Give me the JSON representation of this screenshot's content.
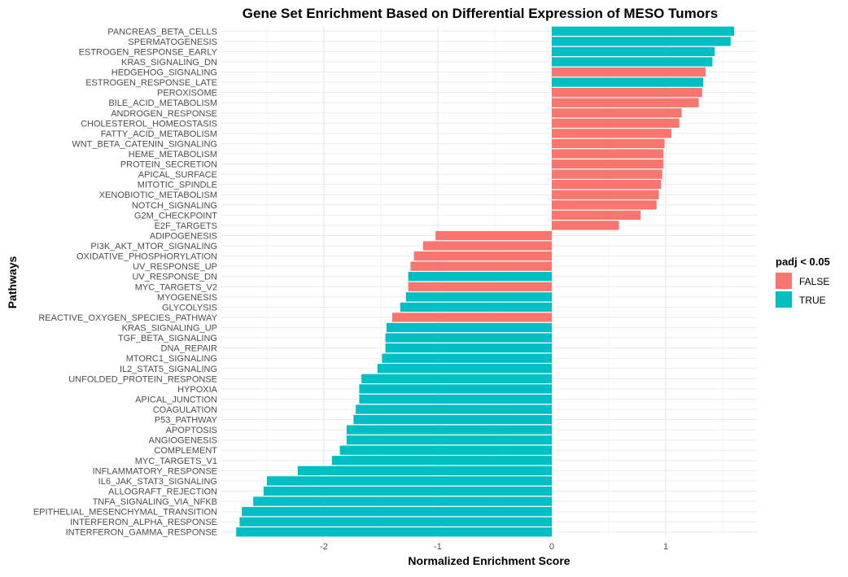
{
  "chart_data": {
    "type": "bar",
    "orientation": "horizontal",
    "title": "Gene Set Enrichment Based on Differential Expression of MESO Tumors",
    "xlabel": "Normalized Enrichment Score",
    "ylabel": "Pathways",
    "xlim": [
      -2.9,
      1.8
    ],
    "xticks": [
      -2,
      -1,
      0,
      1
    ],
    "grid": true,
    "legend": {
      "title": "padj < 0.05",
      "placement": "right",
      "entries": [
        {
          "label": "FALSE",
          "color": "#F8766D"
        },
        {
          "label": "TRUE",
          "color": "#00BFC4"
        }
      ]
    },
    "bars": [
      {
        "pathway": "PANCREAS_BETA_CELLS",
        "nes": 1.6,
        "padj_lt_005": "TRUE"
      },
      {
        "pathway": "SPERMATOGENESIS",
        "nes": 1.57,
        "padj_lt_005": "TRUE"
      },
      {
        "pathway": "ESTROGEN_RESPONSE_EARLY",
        "nes": 1.43,
        "padj_lt_005": "TRUE"
      },
      {
        "pathway": "KRAS_SIGNALING_DN",
        "nes": 1.41,
        "padj_lt_005": "TRUE"
      },
      {
        "pathway": "HEDGEHOG_SIGNALING",
        "nes": 1.35,
        "padj_lt_005": "FALSE"
      },
      {
        "pathway": "ESTROGEN_RESPONSE_LATE",
        "nes": 1.33,
        "padj_lt_005": "TRUE"
      },
      {
        "pathway": "PEROXISOME",
        "nes": 1.32,
        "padj_lt_005": "FALSE"
      },
      {
        "pathway": "BILE_ACID_METABOLISM",
        "nes": 1.29,
        "padj_lt_005": "FALSE"
      },
      {
        "pathway": "ANDROGEN_RESPONSE",
        "nes": 1.14,
        "padj_lt_005": "FALSE"
      },
      {
        "pathway": "CHOLESTEROL_HOMEOSTASIS",
        "nes": 1.12,
        "padj_lt_005": "FALSE"
      },
      {
        "pathway": "FATTY_ACID_METABOLISM",
        "nes": 1.05,
        "padj_lt_005": "FALSE"
      },
      {
        "pathway": "WNT_BETA_CATENIN_SIGNALING",
        "nes": 0.99,
        "padj_lt_005": "FALSE"
      },
      {
        "pathway": "HEME_METABOLISM",
        "nes": 0.98,
        "padj_lt_005": "FALSE"
      },
      {
        "pathway": "PROTEIN_SECRETION",
        "nes": 0.98,
        "padj_lt_005": "FALSE"
      },
      {
        "pathway": "APICAL_SURFACE",
        "nes": 0.97,
        "padj_lt_005": "FALSE"
      },
      {
        "pathway": "MITOTIC_SPINDLE",
        "nes": 0.96,
        "padj_lt_005": "FALSE"
      },
      {
        "pathway": "XENOBIOTIC_METABOLISM",
        "nes": 0.94,
        "padj_lt_005": "FALSE"
      },
      {
        "pathway": "NOTCH_SIGNALING",
        "nes": 0.92,
        "padj_lt_005": "FALSE"
      },
      {
        "pathway": "G2M_CHECKPOINT",
        "nes": 0.78,
        "padj_lt_005": "FALSE"
      },
      {
        "pathway": "E2F_TARGETS",
        "nes": 0.59,
        "padj_lt_005": "FALSE"
      },
      {
        "pathway": "ADIPOGENESIS",
        "nes": -1.02,
        "padj_lt_005": "FALSE"
      },
      {
        "pathway": "PI3K_AKT_MTOR_SIGNALING",
        "nes": -1.13,
        "padj_lt_005": "FALSE"
      },
      {
        "pathway": "OXIDATIVE_PHOSPHORYLATION",
        "nes": -1.21,
        "padj_lt_005": "FALSE"
      },
      {
        "pathway": "UV_RESPONSE_UP",
        "nes": -1.24,
        "padj_lt_005": "FALSE"
      },
      {
        "pathway": "UV_RESPONSE_DN",
        "nes": -1.26,
        "padj_lt_005": "TRUE"
      },
      {
        "pathway": "MYC_TARGETS_V2",
        "nes": -1.26,
        "padj_lt_005": "FALSE"
      },
      {
        "pathway": "MYOGENESIS",
        "nes": -1.28,
        "padj_lt_005": "TRUE"
      },
      {
        "pathway": "GLYCOLYSIS",
        "nes": -1.33,
        "padj_lt_005": "TRUE"
      },
      {
        "pathway": "REACTIVE_OXYGEN_SPECIES_PATHWAY",
        "nes": -1.4,
        "padj_lt_005": "FALSE"
      },
      {
        "pathway": "KRAS_SIGNALING_UP",
        "nes": -1.45,
        "padj_lt_005": "TRUE"
      },
      {
        "pathway": "TGF_BETA_SIGNALING",
        "nes": -1.46,
        "padj_lt_005": "TRUE"
      },
      {
        "pathway": "DNA_REPAIR",
        "nes": -1.46,
        "padj_lt_005": "TRUE"
      },
      {
        "pathway": "MTORC1_SIGNALING",
        "nes": -1.49,
        "padj_lt_005": "TRUE"
      },
      {
        "pathway": "IL2_STAT5_SIGNALING",
        "nes": -1.53,
        "padj_lt_005": "TRUE"
      },
      {
        "pathway": "UNFOLDED_PROTEIN_RESPONSE",
        "nes": -1.67,
        "padj_lt_005": "TRUE"
      },
      {
        "pathway": "HYPOXIA",
        "nes": -1.69,
        "padj_lt_005": "TRUE"
      },
      {
        "pathway": "APICAL_JUNCTION",
        "nes": -1.69,
        "padj_lt_005": "TRUE"
      },
      {
        "pathway": "COAGULATION",
        "nes": -1.72,
        "padj_lt_005": "TRUE"
      },
      {
        "pathway": "P53_PATHWAY",
        "nes": -1.74,
        "padj_lt_005": "TRUE"
      },
      {
        "pathway": "APOPTOSIS",
        "nes": -1.8,
        "padj_lt_005": "TRUE"
      },
      {
        "pathway": "ANGIOGENESIS",
        "nes": -1.8,
        "padj_lt_005": "TRUE"
      },
      {
        "pathway": "COMPLEMENT",
        "nes": -1.86,
        "padj_lt_005": "TRUE"
      },
      {
        "pathway": "MYC_TARGETS_V1",
        "nes": -1.93,
        "padj_lt_005": "TRUE"
      },
      {
        "pathway": "INFLAMMATORY_RESPONSE",
        "nes": -2.23,
        "padj_lt_005": "TRUE"
      },
      {
        "pathway": "IL6_JAK_STAT3_SIGNALING",
        "nes": -2.5,
        "padj_lt_005": "TRUE"
      },
      {
        "pathway": "ALLOGRAFT_REJECTION",
        "nes": -2.53,
        "padj_lt_005": "TRUE"
      },
      {
        "pathway": "TNFA_SIGNALING_VIA_NFKB",
        "nes": -2.62,
        "padj_lt_005": "TRUE"
      },
      {
        "pathway": "EPITHELIAL_MESENCHYMAL_TRANSITION",
        "nes": -2.72,
        "padj_lt_005": "TRUE"
      },
      {
        "pathway": "INTERFERON_ALPHA_RESPONSE",
        "nes": -2.74,
        "padj_lt_005": "TRUE"
      },
      {
        "pathway": "INTERFERON_GAMMA_RESPONSE",
        "nes": -2.77,
        "padj_lt_005": "TRUE"
      }
    ]
  }
}
